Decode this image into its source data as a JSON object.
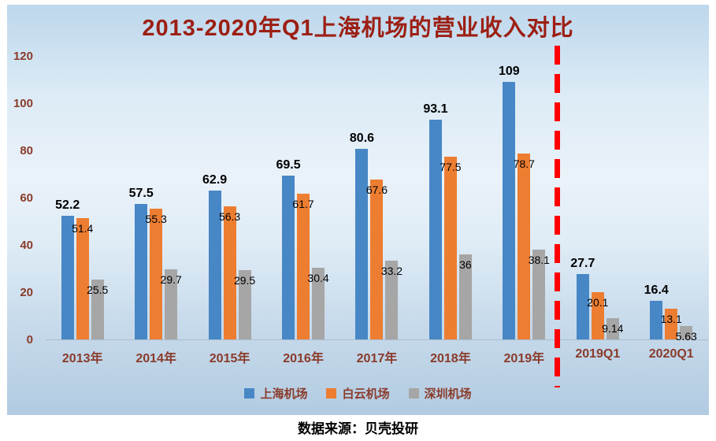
{
  "title": "2013-2020年Q1上海机场的营业收入对比",
  "source": "数据来源：贝壳投研",
  "chart_data": {
    "type": "bar",
    "title": "2013-2020年Q1上海机场的营业收入对比",
    "categories": [
      "2013年",
      "2014年",
      "2015年",
      "2016年",
      "2017年",
      "2018年",
      "2019年",
      "2019Q1",
      "2020Q1"
    ],
    "series": [
      {
        "name": "上海机场",
        "color": "#4787c6",
        "values": [
          52.2,
          57.5,
          62.9,
          69.5,
          80.6,
          93.1,
          109,
          27.7,
          16.4
        ]
      },
      {
        "name": "白云机场",
        "color": "#ed7d31",
        "values": [
          51.4,
          55.3,
          56.3,
          61.7,
          67.6,
          77.5,
          78.7,
          20.1,
          13.1
        ]
      },
      {
        "name": "深圳机场",
        "color": "#a6a6a6",
        "values": [
          25.5,
          29.7,
          29.5,
          30.4,
          33.2,
          36,
          38.1,
          9.14,
          5.63
        ]
      }
    ],
    "xlabel": "",
    "ylabel": "",
    "ylim": [
      0,
      120
    ],
    "yticks": [
      0,
      20,
      40,
      60,
      80,
      100,
      120
    ],
    "grid": false,
    "legend_position": "bottom",
    "separator": {
      "color": "#fe0000",
      "style": "dashed",
      "after_category": "2019年"
    }
  }
}
